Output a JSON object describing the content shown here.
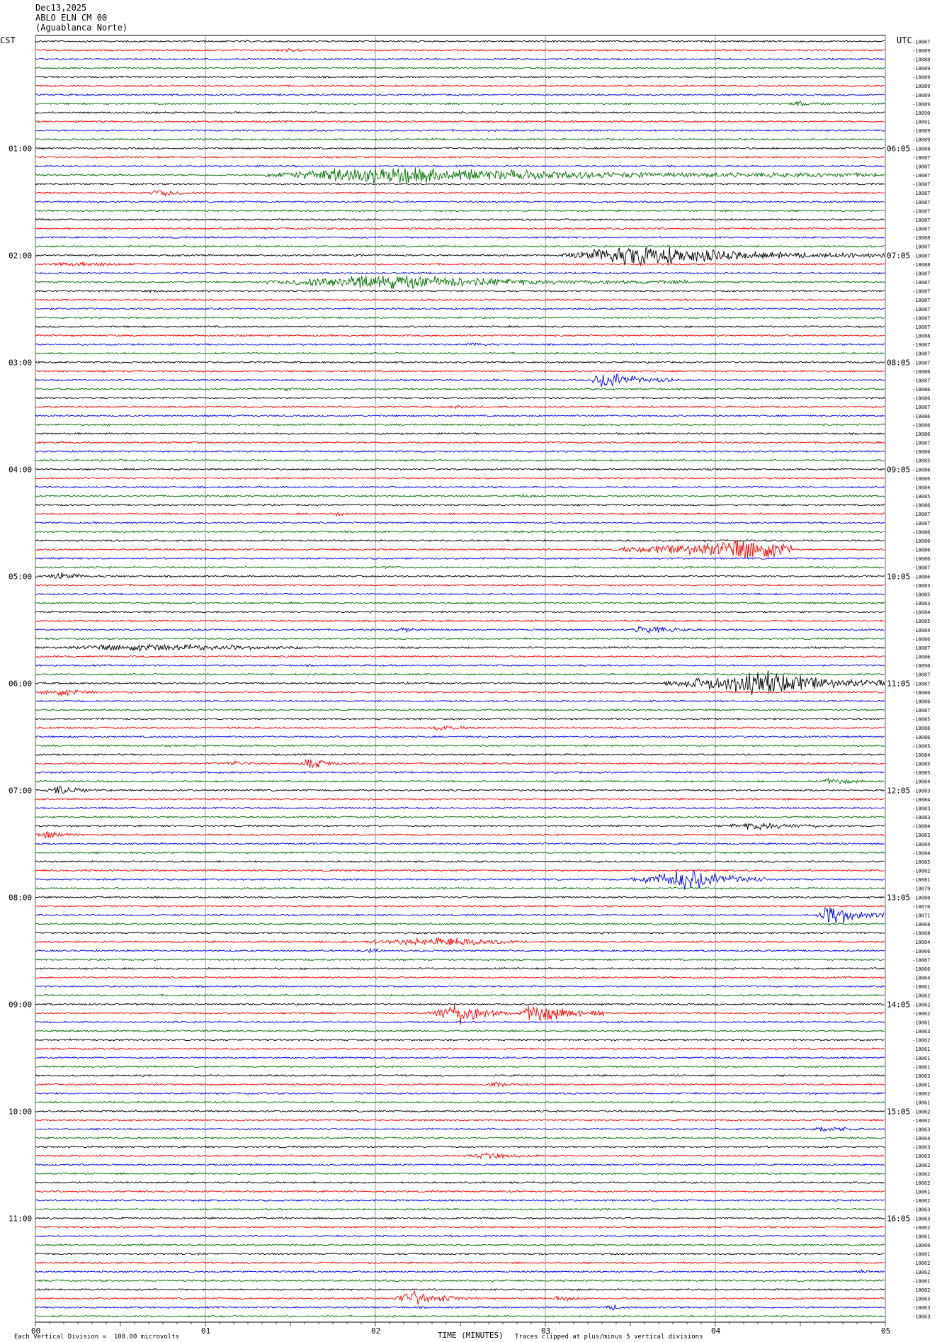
{
  "header": {
    "date": "Dec13,2025",
    "station": "ABLO ELN CM 00",
    "location": "(Aguablanca Norte)"
  },
  "left_tz": "CST",
  "right_tz": "UTC",
  "footer": {
    "scale_note": "Each Vertical Division =  100.00 microvolts",
    "xlabel": "TIME (MINUTES)",
    "clip_note": "Traces clipped at plus/minus 5 vertical divisions"
  },
  "colors": {
    "trace_cycle": [
      "#000000",
      "#ff0000",
      "#0000ff",
      "#007000"
    ],
    "grid": "#808080"
  },
  "chart_data": {
    "type": "line",
    "title": "",
    "xlabel": "TIME (MINUTES)",
    "xlim": [
      0,
      5
    ],
    "x_ticks": [
      "00",
      "01",
      "02",
      "03",
      "04",
      "05"
    ],
    "rows": 144,
    "row_interval_minutes": 5,
    "left_hour_labels": [
      {
        "row": 12,
        "label": "01:00"
      },
      {
        "row": 24,
        "label": "02:00"
      },
      {
        "row": 36,
        "label": "03:00"
      },
      {
        "row": 48,
        "label": "04:00"
      },
      {
        "row": 60,
        "label": "05:00"
      },
      {
        "row": 72,
        "label": "06:00"
      },
      {
        "row": 84,
        "label": "07:00"
      },
      {
        "row": 96,
        "label": "08:00"
      },
      {
        "row": 108,
        "label": "09:00"
      },
      {
        "row": 120,
        "label": "10:00"
      },
      {
        "row": 132,
        "label": "11:00"
      }
    ],
    "right_hour_labels": [
      {
        "row": 12,
        "label": "06:05"
      },
      {
        "row": 24,
        "label": "07:05"
      },
      {
        "row": 36,
        "label": "08:05"
      },
      {
        "row": 48,
        "label": "09:05"
      },
      {
        "row": 60,
        "label": "10:05"
      },
      {
        "row": 72,
        "label": "11:05"
      },
      {
        "row": 84,
        "label": "12:05"
      },
      {
        "row": 96,
        "label": "13:05"
      },
      {
        "row": 108,
        "label": "14:05"
      },
      {
        "row": 120,
        "label": "15:05"
      },
      {
        "row": 132,
        "label": "16:05"
      }
    ],
    "right_row_values": [
      "-10067",
      "-10089",
      "-10088",
      "-10089",
      "-10089",
      "-10089",
      "-10089",
      "-10089",
      "-10090",
      "-10091",
      "-10089",
      "-10089",
      "-10088",
      "-10087",
      "-10087",
      "-10087",
      "-10087",
      "-10087",
      "-10087",
      "-10087",
      "-10087",
      "-10087",
      "-10088",
      "-10087",
      "-10087",
      "-10088",
      "-10087",
      "-10087",
      "-10087",
      "-10087",
      "-10087",
      "-10087",
      "-10087",
      "-10088",
      "-10087",
      "-10087",
      "-10087",
      "-10086",
      "-10087",
      "-10086",
      "-10086",
      "-10087",
      "-10086",
      "-10086",
      "-10086",
      "-10087",
      "-10086",
      "-10085",
      "-10086",
      "-10086",
      "-10084",
      "-10085",
      "-10086",
      "-10087",
      "-10087",
      "-10086",
      "-10086",
      "-10086",
      "-10086",
      "-10087",
      "-10086",
      "-10083",
      "-10085",
      "-10083",
      "-10084",
      "-10085",
      "-10084",
      "-10086",
      "-10087",
      "-10086",
      "-10090",
      "-10087",
      "-10087",
      "-10086",
      "-10086",
      "-10087",
      "-10085",
      "-10086",
      "-10086",
      "-10085",
      "-10084",
      "-10085",
      "-10085",
      "-10084",
      "-10083",
      "-10084",
      "-10083",
      "-10083",
      "-10084",
      "-10083",
      "-10084",
      "-10084",
      "-10085",
      "-10082",
      "-10081",
      "-10079",
      "-10080",
      "-10076",
      "-10071",
      "-10068",
      "-10068",
      "-10064",
      "-10066",
      "-10067",
      "-10066",
      "-10064",
      "-10061",
      "-10062",
      "-10062",
      "-10062",
      "-10061",
      "-10063",
      "-10062",
      "-10061",
      "-10061",
      "-10061",
      "-10063",
      "-10061",
      "-10062",
      "-10061",
      "-10062",
      "-10062",
      "-10063",
      "-10064",
      "-10063",
      "-10063",
      "-10062",
      "-10062",
      "-10062",
      "-10061",
      "-10062",
      "-10063",
      "-10063",
      "-10062",
      "-10061",
      "-10060",
      "-10061",
      "-10062",
      "-10062",
      "-10061",
      "-10062",
      "-10063",
      "-10063",
      "-10063"
    ],
    "events": [
      {
        "row": 1,
        "t": 1.4,
        "dur": 0.4,
        "amp": 3
      },
      {
        "row": 7,
        "t": 4.4,
        "dur": 0.4,
        "amp": 4
      },
      {
        "row": 12,
        "t": 2.8,
        "dur": 0.2,
        "amp": 3
      },
      {
        "row": 15,
        "t": 1.35,
        "dur": 3.65,
        "amp": 14,
        "burst": 2.0
      },
      {
        "row": 17,
        "t": 0.65,
        "dur": 0.4,
        "amp": 6
      },
      {
        "row": 24,
        "t": 3.1,
        "dur": 1.9,
        "amp": 16,
        "burst": 3.55
      },
      {
        "row": 25,
        "t": 0.0,
        "dur": 1.0,
        "amp": 4
      },
      {
        "row": 27,
        "t": 1.35,
        "dur": 2.5,
        "amp": 12
      },
      {
        "row": 28,
        "t": 0.6,
        "dur": 0.4,
        "amp": 3
      },
      {
        "row": 29,
        "t": 2.2,
        "dur": 0.5,
        "amp": 2
      },
      {
        "row": 34,
        "t": 2.5,
        "dur": 0.4,
        "amp": 3
      },
      {
        "row": 38,
        "t": 3.25,
        "dur": 0.5,
        "amp": 14
      },
      {
        "row": 39,
        "t": 1.4,
        "dur": 0.3,
        "amp": 3
      },
      {
        "row": 41,
        "t": 2.4,
        "dur": 0.3,
        "amp": 3
      },
      {
        "row": 51,
        "t": 2.8,
        "dur": 0.3,
        "amp": 3
      },
      {
        "row": 53,
        "t": 1.7,
        "dur": 0.3,
        "amp": 3
      },
      {
        "row": 55,
        "t": 2.25,
        "dur": 2.8,
        "amp": 2
      },
      {
        "row": 57,
        "t": 3.45,
        "dur": 1.0,
        "amp": 16,
        "burst": 4.25
      },
      {
        "row": 59,
        "t": 2.0,
        "dur": 0.3,
        "amp": 3
      },
      {
        "row": 60,
        "t": 0.05,
        "dur": 0.4,
        "amp": 6
      },
      {
        "row": 66,
        "t": 2.1,
        "dur": 0.3,
        "amp": 4
      },
      {
        "row": 68,
        "t": 0.0,
        "dur": 2.3,
        "amp": 6,
        "burst": 0.7
      },
      {
        "row": 66,
        "t": 3.5,
        "dur": 0.4,
        "amp": 8
      },
      {
        "row": 72,
        "t": 3.7,
        "dur": 1.3,
        "amp": 18,
        "burst": 4.3
      },
      {
        "row": 73,
        "t": 0.0,
        "dur": 0.6,
        "amp": 6
      },
      {
        "row": 77,
        "t": 2.3,
        "dur": 0.4,
        "amp": 5
      },
      {
        "row": 81,
        "t": 1.1,
        "dur": 0.3,
        "amp": 5
      },
      {
        "row": 81,
        "t": 1.55,
        "dur": 0.3,
        "amp": 9
      },
      {
        "row": 83,
        "t": 4.6,
        "dur": 0.4,
        "amp": 6
      },
      {
        "row": 84,
        "t": 0.05,
        "dur": 0.4,
        "amp": 7
      },
      {
        "row": 88,
        "t": 4.0,
        "dur": 1.0,
        "amp": 6
      },
      {
        "row": 89,
        "t": 0.0,
        "dur": 0.3,
        "amp": 7
      },
      {
        "row": 94,
        "t": 3.5,
        "dur": 0.8,
        "amp": 16,
        "burst": 3.85
      },
      {
        "row": 98,
        "t": 4.6,
        "dur": 0.4,
        "amp": 18
      },
      {
        "row": 101,
        "t": 1.8,
        "dur": 1.1,
        "amp": 7,
        "burst": 2.5
      },
      {
        "row": 102,
        "t": 1.9,
        "dur": 0.3,
        "amp": 4
      },
      {
        "row": 109,
        "t": 2.3,
        "dur": 0.5,
        "amp": 16,
        "burst": 2.5
      },
      {
        "row": 109,
        "t": 2.85,
        "dur": 0.5,
        "amp": 18,
        "burst": 2.95
      },
      {
        "row": 117,
        "t": 2.6,
        "dur": 0.4,
        "amp": 4
      },
      {
        "row": 122,
        "t": 4.5,
        "dur": 0.5,
        "amp": 6
      },
      {
        "row": 125,
        "t": 2.5,
        "dur": 0.7,
        "amp": 5
      },
      {
        "row": 138,
        "t": 4.8,
        "dur": 0.2,
        "amp": 3
      },
      {
        "row": 141,
        "t": 2.1,
        "dur": 0.5,
        "amp": 12
      },
      {
        "row": 141,
        "t": 3.0,
        "dur": 0.4,
        "amp": 4
      },
      {
        "row": 142,
        "t": 3.3,
        "dur": 0.4,
        "amp": 4
      }
    ]
  }
}
